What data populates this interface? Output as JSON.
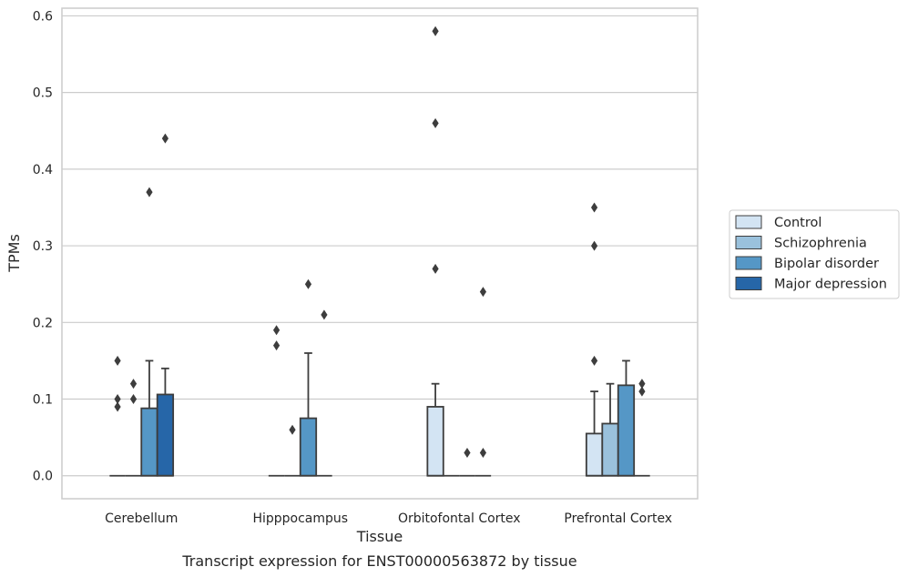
{
  "chart_data": {
    "type": "box",
    "caption": "Transcript expression for ENST00000563872 by tissue",
    "xlabel": "Tissue",
    "ylabel": "TPMs",
    "categories": [
      "Cerebellum",
      "Hipppocampus",
      "Orbitofontal Cortex",
      "Prefrontal Cortex"
    ],
    "ylim": [
      -0.03,
      0.61
    ],
    "yticks": [
      0.0,
      0.1,
      0.2,
      0.3,
      0.4,
      0.5,
      0.6
    ],
    "ytick_labels": [
      "0.0",
      "0.1",
      "0.2",
      "0.3",
      "0.4",
      "0.5",
      "0.6"
    ],
    "grid": "horizontal",
    "legend_position": "right",
    "series": [
      {
        "name": "Control",
        "color": "#d3e4f3",
        "boxes": [
          {
            "q1": 0,
            "median": 0,
            "q3": 0,
            "whisker_low": 0,
            "whisker_high": 0,
            "outliers": [
              0.15,
              0.1,
              0.09
            ]
          },
          {
            "q1": 0,
            "median": 0,
            "q3": 0,
            "whisker_low": 0,
            "whisker_high": 0,
            "outliers": [
              0.19,
              0.17
            ]
          },
          {
            "q1": 0,
            "median": 0,
            "q3": 0.09,
            "whisker_low": 0,
            "whisker_high": 0.12,
            "outliers": [
              0.46,
              0.58,
              0.27
            ]
          },
          {
            "q1": 0,
            "median": 0,
            "q3": 0.055,
            "whisker_low": 0,
            "whisker_high": 0.11,
            "outliers": [
              0.35,
              0.3,
              0.15
            ]
          }
        ]
      },
      {
        "name": "Schizophrenia",
        "color": "#9ac1dc",
        "boxes": [
          {
            "q1": 0,
            "median": 0,
            "q3": 0,
            "whisker_low": 0,
            "whisker_high": 0,
            "outliers": [
              0.12,
              0.1
            ]
          },
          {
            "q1": 0,
            "median": 0,
            "q3": 0,
            "whisker_low": 0,
            "whisker_high": 0,
            "outliers": [
              0.06
            ]
          },
          {
            "q1": 0,
            "median": 0,
            "q3": 0,
            "whisker_low": 0,
            "whisker_high": 0,
            "outliers": []
          },
          {
            "q1": 0,
            "median": 0,
            "q3": 0.068,
            "whisker_low": 0,
            "whisker_high": 0.12,
            "outliers": []
          }
        ]
      },
      {
        "name": "Bipolar disorder",
        "color": "#5597c6",
        "boxes": [
          {
            "q1": 0,
            "median": 0,
            "q3": 0.088,
            "whisker_low": 0,
            "whisker_high": 0.15,
            "outliers": [
              0.37
            ]
          },
          {
            "q1": 0,
            "median": 0,
            "q3": 0.075,
            "whisker_low": 0,
            "whisker_high": 0.16,
            "outliers": [
              0.25
            ]
          },
          {
            "q1": 0,
            "median": 0,
            "q3": 0,
            "whisker_low": 0,
            "whisker_high": 0,
            "outliers": [
              0.03
            ]
          },
          {
            "q1": 0,
            "median": 0,
            "q3": 0.118,
            "whisker_low": 0,
            "whisker_high": 0.15,
            "outliers": []
          }
        ]
      },
      {
        "name": "Major depression",
        "color": "#2666a8",
        "boxes": [
          {
            "q1": 0,
            "median": 0,
            "q3": 0.106,
            "whisker_low": 0,
            "whisker_high": 0.14,
            "outliers": [
              0.44
            ]
          },
          {
            "q1": 0,
            "median": 0,
            "q3": 0,
            "whisker_low": 0,
            "whisker_high": 0,
            "outliers": [
              0.21
            ]
          },
          {
            "q1": 0,
            "median": 0,
            "q3": 0,
            "whisker_low": 0,
            "whisker_high": 0,
            "outliers": [
              0.24,
              0.03
            ]
          },
          {
            "q1": 0,
            "median": 0,
            "q3": 0,
            "whisker_low": 0,
            "whisker_high": 0,
            "outliers": [
              0.12,
              0.11
            ]
          }
        ]
      }
    ]
  }
}
